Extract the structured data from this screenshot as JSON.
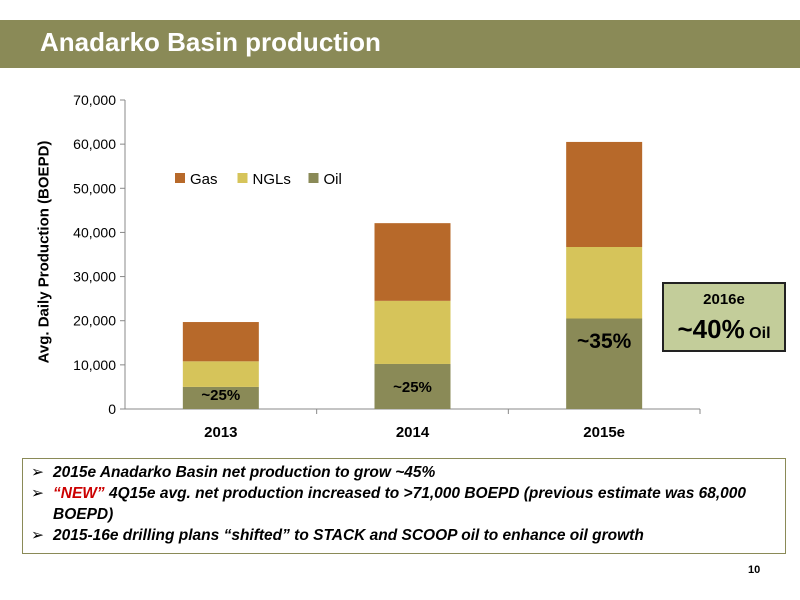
{
  "header": {
    "title": "Anadarko Basin production"
  },
  "chart_data": {
    "type": "bar",
    "stacked": true,
    "categories": [
      "2013",
      "2014",
      "2015e"
    ],
    "series": [
      {
        "name": "Oil",
        "values": [
          5000,
          10200,
          20500
        ],
        "color": "#8a8a57"
      },
      {
        "name": "NGLs",
        "values": [
          5800,
          14300,
          16200
        ],
        "color": "#d6c45a"
      },
      {
        "name": "Gas",
        "values": [
          8900,
          17600,
          23800
        ],
        "color": "#b7692a"
      }
    ],
    "legend_order": [
      "Gas",
      "NGLs",
      "Oil"
    ],
    "legend_position": "top-left",
    "ylabel": "Avg. Daily Production (BOEPD)",
    "ylim": [
      0,
      70000
    ],
    "yticks": [
      "0",
      "10,000",
      "20,000",
      "30,000",
      "40,000",
      "50,000",
      "60,000",
      "70,000"
    ],
    "annotations": [
      "~25%",
      "~25%",
      "~35%"
    ]
  },
  "callout": {
    "year": "2016e",
    "percent": "~40%",
    "suffix": "Oil"
  },
  "bullets": [
    {
      "red_prefix": "",
      "text": "2015e Anadarko Basin net production to grow ~45%"
    },
    {
      "red_prefix": "“NEW”",
      "text": " 4Q15e avg. net production increased to >71,000 BOEPD (previous estimate was 68,000 BOEPD)"
    },
    {
      "red_prefix": "",
      "text": "2015-16e drilling plans “shifted” to STACK and SCOOP oil to enhance oil growth"
    }
  ],
  "bullet_marker": "➢",
  "page_number": "10"
}
